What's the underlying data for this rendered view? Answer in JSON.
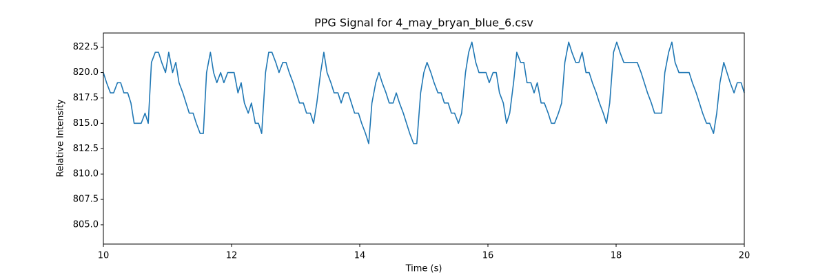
{
  "chart_data": {
    "type": "line",
    "title": "PPG Signal for 4_may_bryan_blue_6.csv",
    "x_label": "Time (s)",
    "y_label": "Relative Intensity",
    "xlim": [
      10,
      20
    ],
    "ylim": [
      803.1,
      823.9
    ],
    "xticks": [
      10,
      12,
      14,
      16,
      18,
      20
    ],
    "yticks": [
      {
        "value": 805,
        "label": "805.0"
      },
      {
        "value": 807.5,
        "label": "807.5"
      },
      {
        "value": 810,
        "label": "810.0"
      },
      {
        "value": 812.5,
        "label": "812.5"
      },
      {
        "value": 815,
        "label": "815.0"
      },
      {
        "value": 817.5,
        "label": "817.5"
      },
      {
        "value": 820,
        "label": "820.0"
      },
      {
        "value": 822.5,
        "label": "822.5"
      }
    ],
    "grid": false,
    "x": [
      10.0,
      10.05,
      10.11,
      10.16,
      10.22,
      10.27,
      10.32,
      10.38,
      10.43,
      10.48,
      10.54,
      10.59,
      10.65,
      10.7,
      10.75,
      10.81,
      10.86,
      10.91,
      10.97,
      11.02,
      11.08,
      11.13,
      11.18,
      11.24,
      11.29,
      11.34,
      11.4,
      11.45,
      11.51,
      11.56,
      11.61,
      11.67,
      11.72,
      11.77,
      11.83,
      11.88,
      11.94,
      11.99,
      12.04,
      12.1,
      12.15,
      12.2,
      12.26,
      12.31,
      12.37,
      12.42,
      12.47,
      12.53,
      12.58,
      12.63,
      12.69,
      12.74,
      12.8,
      12.85,
      12.9,
      12.96,
      13.01,
      13.06,
      13.12,
      13.17,
      13.23,
      13.28,
      13.33,
      13.39,
      13.44,
      13.49,
      13.55,
      13.6,
      13.66,
      13.71,
      13.76,
      13.82,
      13.87,
      13.92,
      13.98,
      14.03,
      14.09,
      14.14,
      14.19,
      14.25,
      14.3,
      14.35,
      14.41,
      14.46,
      14.52,
      14.57,
      14.62,
      14.68,
      14.73,
      14.78,
      14.84,
      14.89,
      14.95,
      15.0,
      15.05,
      15.11,
      15.16,
      15.22,
      15.27,
      15.32,
      15.38,
      15.43,
      15.48,
      15.54,
      15.59,
      15.65,
      15.7,
      15.75,
      15.81,
      15.86,
      15.91,
      15.97,
      16.02,
      16.08,
      16.13,
      16.18,
      16.24,
      16.29,
      16.34,
      16.4,
      16.45,
      16.51,
      16.56,
      16.61,
      16.67,
      16.72,
      16.77,
      16.83,
      16.88,
      16.94,
      16.99,
      17.04,
      17.1,
      17.15,
      17.2,
      17.26,
      17.31,
      17.37,
      17.42,
      17.47,
      17.53,
      17.58,
      17.63,
      17.69,
      17.74,
      17.8,
      17.85,
      17.9,
      17.96,
      18.01,
      18.06,
      18.12,
      18.17,
      18.23,
      18.28,
      18.33,
      18.39,
      18.44,
      18.49,
      18.55,
      18.6,
      18.66,
      18.71,
      18.76,
      18.82,
      18.87,
      18.92,
      18.98,
      19.03,
      19.09,
      19.14,
      19.19,
      19.25,
      19.3,
      19.35,
      19.41,
      19.46,
      19.52,
      19.57,
      19.62,
      19.68,
      19.73,
      19.78,
      19.84,
      19.89,
      19.95,
      20.0
    ],
    "series": [
      {
        "name": "PPG",
        "color": "#1f77b4",
        "values": [
          820,
          819,
          818,
          818,
          819,
          819,
          818,
          818,
          817,
          815,
          815,
          815,
          816,
          815,
          821,
          822,
          822,
          821,
          820,
          822,
          820,
          821,
          819,
          818,
          817,
          816,
          816,
          815,
          814,
          814,
          820,
          822,
          820,
          819,
          820,
          819,
          820,
          820,
          820,
          818,
          819,
          817,
          816,
          817,
          815,
          815,
          814,
          820,
          822,
          822,
          821,
          820,
          821,
          821,
          820,
          819,
          818,
          817,
          817,
          816,
          816,
          815,
          817,
          820,
          822,
          820,
          819,
          818,
          818,
          817,
          818,
          818,
          817,
          816,
          816,
          815,
          814,
          813,
          817,
          819,
          820,
          819,
          818,
          817,
          817,
          818,
          817,
          816,
          815,
          814,
          813,
          813,
          818,
          820,
          821,
          820,
          819,
          818,
          818,
          817,
          817,
          816,
          816,
          815,
          816,
          820,
          822,
          823,
          821,
          820,
          820,
          820,
          819,
          820,
          820,
          818,
          817,
          815,
          816,
          819,
          822,
          821,
          821,
          819,
          819,
          818,
          819,
          817,
          817,
          816,
          815,
          815,
          816,
          817,
          821,
          823,
          822,
          821,
          821,
          822,
          820,
          820,
          819,
          818,
          817,
          816,
          815,
          817,
          822,
          823,
          822,
          821,
          821,
          821,
          821,
          821,
          820,
          819,
          818,
          817,
          816,
          816,
          816,
          820,
          822,
          823,
          821,
          820,
          820,
          820,
          820,
          819,
          818,
          817,
          816,
          815,
          815,
          814,
          816,
          819,
          821,
          820,
          819,
          818,
          819,
          819,
          818
        ]
      }
    ]
  }
}
